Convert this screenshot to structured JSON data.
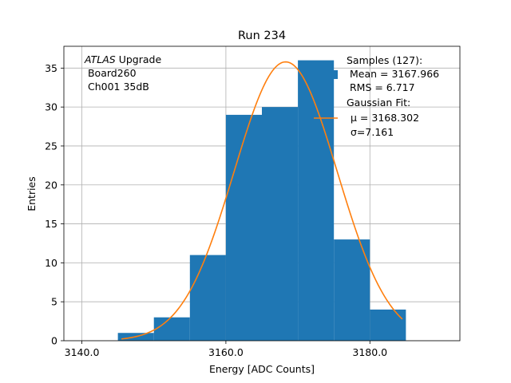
{
  "chart_data": {
    "type": "bar",
    "title": "Run 234",
    "xlabel": "Energy [ADC Counts]",
    "ylabel": "Entries",
    "xlim": [
      3137.5,
      3192.5
    ],
    "ylim": [
      0,
      37.8
    ],
    "xticks": [
      3140.0,
      3160.0,
      3180.0
    ],
    "xtick_labels": [
      "3140.0",
      "3160.0",
      "3180.0"
    ],
    "yticks": [
      0,
      5,
      10,
      15,
      20,
      25,
      30,
      35
    ],
    "ytick_labels": [
      "0",
      "5",
      "10",
      "15",
      "20",
      "25",
      "30",
      "35"
    ],
    "grid": true,
    "bin_edges": [
      3145,
      3150,
      3155,
      3160,
      3165,
      3170,
      3175,
      3180,
      3185
    ],
    "values": [
      1,
      3,
      11,
      29,
      30,
      36,
      13,
      4
    ],
    "bar_color": "#1f77b4",
    "fit": {
      "mu": 3168.302,
      "sigma": 7.161,
      "amplitude": 35.8,
      "x_range": [
        3145.5,
        3184.5
      ],
      "color": "#ff7f0e"
    },
    "annotation_lines": [
      "ATLAS",
      " Upgrade",
      " Board260",
      " Ch001 35dB"
    ],
    "legend": {
      "position": "top-right",
      "samples_lines": [
        "Samples (127):",
        " Mean = 3167.966",
        " RMS = 6.717"
      ],
      "fit_lines": [
        "Gaussian Fit:",
        "μ = 3168.302",
        "σ=7.161"
      ]
    }
  }
}
